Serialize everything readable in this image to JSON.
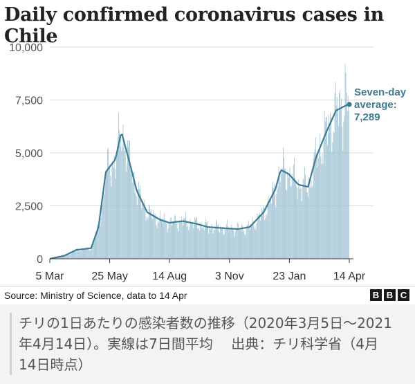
{
  "chart_data": {
    "type": "bar",
    "title": "Daily confirmed coronavirus cases in Chile",
    "xlabel": "",
    "ylabel": "",
    "ylim": [
      0,
      10000
    ],
    "yticks": [
      0,
      2500,
      5000,
      7500,
      10000
    ],
    "ytick_labels": [
      "0",
      "2,500",
      "5,000",
      "7,500",
      "10,000"
    ],
    "x_start": "2020-03-05",
    "x_end": "2021-04-14",
    "xticks": [
      {
        "date": "2020-03-05",
        "label": "5 Mar"
      },
      {
        "date": "2020-05-25",
        "label": "25 May"
      },
      {
        "date": "2020-08-14",
        "label": "14 Aug"
      },
      {
        "date": "2020-11-03",
        "label": "3 Nov"
      },
      {
        "date": "2021-01-23",
        "label": "23 Jan"
      },
      {
        "date": "2021-04-14",
        "label": "14 Apr"
      }
    ],
    "grid": true,
    "series": [
      {
        "kind": "bar",
        "color": "#9fc3d3",
        "description_points": [
          {
            "date": "2020-03-05",
            "value": 0
          },
          {
            "date": "2020-03-25",
            "value": 150
          },
          {
            "date": "2020-04-10",
            "value": 420
          },
          {
            "date": "2020-04-30",
            "value": 500
          },
          {
            "date": "2020-05-10",
            "value": 1500
          },
          {
            "date": "2020-05-20",
            "value": 4100
          },
          {
            "date": "2020-06-02",
            "value": 4700
          },
          {
            "date": "2020-06-10",
            "value": 6000
          },
          {
            "date": "2020-06-20",
            "value": 4700
          },
          {
            "date": "2020-07-01",
            "value": 3200
          },
          {
            "date": "2020-07-15",
            "value": 2200
          },
          {
            "date": "2020-08-01",
            "value": 1850
          },
          {
            "date": "2020-08-14",
            "value": 1700
          },
          {
            "date": "2020-09-01",
            "value": 1780
          },
          {
            "date": "2020-09-20",
            "value": 1650
          },
          {
            "date": "2020-10-05",
            "value": 1500
          },
          {
            "date": "2020-10-25",
            "value": 1450
          },
          {
            "date": "2020-11-15",
            "value": 1400
          },
          {
            "date": "2020-12-01",
            "value": 1500
          },
          {
            "date": "2020-12-20",
            "value": 2200
          },
          {
            "date": "2021-01-05",
            "value": 3300
          },
          {
            "date": "2021-01-12",
            "value": 4200
          },
          {
            "date": "2021-01-23",
            "value": 4000
          },
          {
            "date": "2021-02-05",
            "value": 3500
          },
          {
            "date": "2021-02-18",
            "value": 3400
          },
          {
            "date": "2021-03-01",
            "value": 4800
          },
          {
            "date": "2021-03-15",
            "value": 6000
          },
          {
            "date": "2021-03-28",
            "value": 7000
          },
          {
            "date": "2021-04-08",
            "value": 7200
          },
          {
            "date": "2021-04-14",
            "value": 7289
          }
        ]
      },
      {
        "kind": "line",
        "color": "#3d7a94",
        "points": [
          {
            "date": "2020-03-05",
            "value": 0
          },
          {
            "date": "2020-03-25",
            "value": 150
          },
          {
            "date": "2020-04-10",
            "value": 420
          },
          {
            "date": "2020-04-30",
            "value": 500
          },
          {
            "date": "2020-05-10",
            "value": 1500
          },
          {
            "date": "2020-05-20",
            "value": 4100
          },
          {
            "date": "2020-06-02",
            "value": 4700
          },
          {
            "date": "2020-06-10",
            "value": 6000
          },
          {
            "date": "2020-06-20",
            "value": 4700
          },
          {
            "date": "2020-07-01",
            "value": 3200
          },
          {
            "date": "2020-07-15",
            "value": 2200
          },
          {
            "date": "2020-08-01",
            "value": 1850
          },
          {
            "date": "2020-08-14",
            "value": 1700
          },
          {
            "date": "2020-09-01",
            "value": 1780
          },
          {
            "date": "2020-09-20",
            "value": 1650
          },
          {
            "date": "2020-10-05",
            "value": 1500
          },
          {
            "date": "2020-10-25",
            "value": 1450
          },
          {
            "date": "2020-11-15",
            "value": 1400
          },
          {
            "date": "2020-12-01",
            "value": 1500
          },
          {
            "date": "2020-12-20",
            "value": 2200
          },
          {
            "date": "2021-01-05",
            "value": 3300
          },
          {
            "date": "2021-01-12",
            "value": 4200
          },
          {
            "date": "2021-01-23",
            "value": 4000
          },
          {
            "date": "2021-02-05",
            "value": 3500
          },
          {
            "date": "2021-02-18",
            "value": 3400
          },
          {
            "date": "2021-03-01",
            "value": 4800
          },
          {
            "date": "2021-03-15",
            "value": 6000
          },
          {
            "date": "2021-03-28",
            "value": 7000
          },
          {
            "date": "2021-04-08",
            "value": 7200
          },
          {
            "date": "2021-04-14",
            "value": 7289
          }
        ]
      }
    ],
    "annotation": {
      "lines": [
        "Seven-day",
        "average:",
        "7,289"
      ],
      "date": "2021-04-14",
      "value": 7289
    },
    "peak_daily": {
      "date": "2021-04-09",
      "value": 9200
    }
  },
  "source": "Source: Ministry of Science, data to 14 Apr",
  "logo": [
    "B",
    "B",
    "C"
  ],
  "caption": "チリの1日あたりの感染者数の推移（2020年3月5日〜2021年4月14日）。実線は7日間平均　 出典：チリ科学省（4月14日時点）",
  "colors": {
    "bar": "#9fc3d3",
    "line": "#3d7a94",
    "grid": "#d9d9d9",
    "axis_text": "#555555"
  }
}
